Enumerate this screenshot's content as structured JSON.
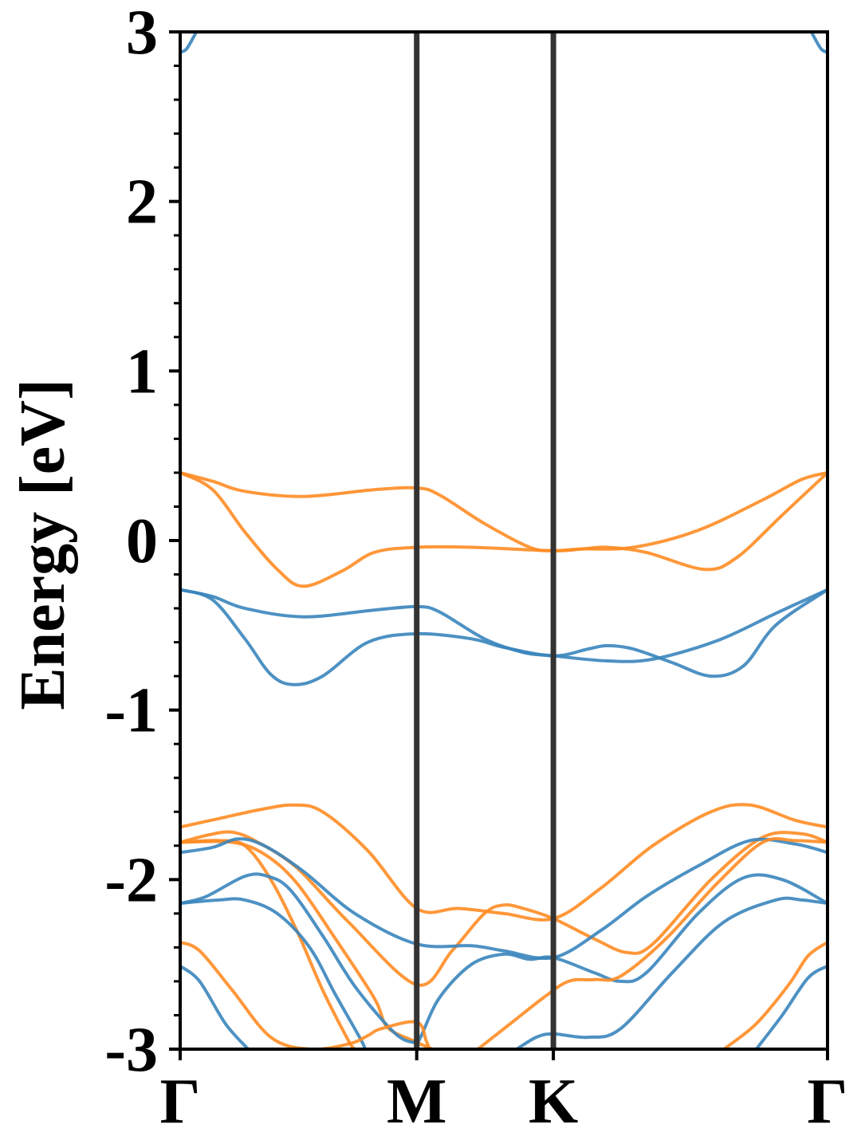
{
  "chart_data": {
    "type": "line",
    "title": "",
    "xlabel": "",
    "ylabel": "Energy [eV]",
    "ylim": [
      -3,
      3
    ],
    "yticks": [
      "-3",
      "-2",
      "-1",
      "0",
      "1",
      "2",
      "3"
    ],
    "y_minor_tick_step": 0.2,
    "grid": false,
    "legend": "none",
    "high_symmetry_points": [
      {
        "label": "Γ",
        "k": 0.0
      },
      {
        "label": "M",
        "k": 0.3654
      },
      {
        "label": "K",
        "k": 0.5765
      },
      {
        "label": "Γ",
        "k": 1.0
      }
    ],
    "colors": {
      "blue": "#3a85bd",
      "orange": "#ff8c24",
      "vline": "#333333",
      "axis": "#000000"
    },
    "series": [
      {
        "color": "#3a85bd",
        "points": [
          [
            0.0,
            2.88
          ],
          [
            0.01,
            2.9
          ],
          [
            0.025,
            3.0
          ]
        ]
      },
      {
        "color": "#3a85bd",
        "points": [
          [
            0.975,
            3.0
          ],
          [
            0.99,
            2.9
          ],
          [
            1.0,
            2.88
          ]
        ]
      },
      {
        "color": "#ff8c24",
        "points": [
          [
            0.0,
            0.4
          ],
          [
            0.05,
            0.35
          ],
          [
            0.1,
            0.29
          ],
          [
            0.19,
            0.26
          ],
          [
            0.3,
            0.3
          ],
          [
            0.3654,
            0.31
          ],
          [
            0.4,
            0.27
          ],
          [
            0.47,
            0.1
          ],
          [
            0.54,
            -0.04
          ],
          [
            0.5765,
            -0.06
          ],
          [
            0.62,
            -0.05
          ],
          [
            0.7,
            -0.04
          ],
          [
            0.8,
            0.06
          ],
          [
            0.9,
            0.24
          ],
          [
            0.96,
            0.36
          ],
          [
            1.0,
            0.4
          ]
        ]
      },
      {
        "color": "#ff8c24",
        "points": [
          [
            0.0,
            0.4
          ],
          [
            0.05,
            0.3
          ],
          [
            0.1,
            0.05
          ],
          [
            0.15,
            -0.17
          ],
          [
            0.19,
            -0.27
          ],
          [
            0.25,
            -0.18
          ],
          [
            0.3,
            -0.07
          ],
          [
            0.3654,
            -0.04
          ],
          [
            0.45,
            -0.04
          ],
          [
            0.5765,
            -0.06
          ],
          [
            0.62,
            -0.05
          ],
          [
            0.66,
            -0.04
          ],
          [
            0.72,
            -0.07
          ],
          [
            0.81,
            -0.17
          ],
          [
            0.86,
            -0.1
          ],
          [
            0.93,
            0.15
          ],
          [
            1.0,
            0.4
          ]
        ]
      },
      {
        "color": "#3a85bd",
        "points": [
          [
            0.0,
            -0.29
          ],
          [
            0.05,
            -0.33
          ],
          [
            0.1,
            -0.4
          ],
          [
            0.19,
            -0.45
          ],
          [
            0.3,
            -0.41
          ],
          [
            0.3654,
            -0.39
          ],
          [
            0.4,
            -0.42
          ],
          [
            0.47,
            -0.58
          ],
          [
            0.53,
            -0.66
          ],
          [
            0.5765,
            -0.68
          ],
          [
            0.66,
            -0.71
          ],
          [
            0.73,
            -0.7
          ],
          [
            0.83,
            -0.59
          ],
          [
            0.92,
            -0.43
          ],
          [
            1.0,
            -0.29
          ]
        ]
      },
      {
        "color": "#3a85bd",
        "points": [
          [
            0.0,
            -0.29
          ],
          [
            0.05,
            -0.35
          ],
          [
            0.1,
            -0.58
          ],
          [
            0.14,
            -0.79
          ],
          [
            0.175,
            -0.85
          ],
          [
            0.22,
            -0.8
          ],
          [
            0.29,
            -0.6
          ],
          [
            0.3654,
            -0.55
          ],
          [
            0.45,
            -0.58
          ],
          [
            0.5,
            -0.63
          ],
          [
            0.5765,
            -0.68
          ],
          [
            0.63,
            -0.64
          ],
          [
            0.66,
            -0.62
          ],
          [
            0.7,
            -0.64
          ],
          [
            0.76,
            -0.72
          ],
          [
            0.82,
            -0.8
          ],
          [
            0.87,
            -0.74
          ],
          [
            0.92,
            -0.5
          ],
          [
            1.0,
            -0.29
          ]
        ]
      },
      {
        "color": "#ff8c24",
        "points": [
          [
            0.0,
            -1.69
          ],
          [
            0.06,
            -1.64
          ],
          [
            0.12,
            -1.59
          ],
          [
            0.175,
            -1.56
          ],
          [
            0.22,
            -1.6
          ],
          [
            0.29,
            -1.83
          ],
          [
            0.3654,
            -2.17
          ],
          [
            0.43,
            -2.17
          ],
          [
            0.5,
            -2.2
          ],
          [
            0.5765,
            -2.23
          ],
          [
            0.65,
            -2.05
          ],
          [
            0.73,
            -1.8
          ],
          [
            0.82,
            -1.6
          ],
          [
            0.88,
            -1.56
          ],
          [
            0.95,
            -1.65
          ],
          [
            1.0,
            -1.69
          ]
        ]
      },
      {
        "color": "#ff8c24",
        "points": [
          [
            0.0,
            -1.78
          ],
          [
            0.04,
            -1.74
          ],
          [
            0.08,
            -1.72
          ],
          [
            0.12,
            -1.78
          ],
          [
            0.18,
            -1.93
          ],
          [
            0.26,
            -2.25
          ],
          [
            0.3654,
            -2.62
          ],
          [
            0.42,
            -2.42
          ],
          [
            0.47,
            -2.2
          ],
          [
            0.5,
            -2.15
          ],
          [
            0.53,
            -2.17
          ],
          [
            0.5765,
            -2.23
          ],
          [
            0.64,
            -2.35
          ],
          [
            0.69,
            -2.43
          ],
          [
            0.73,
            -2.38
          ],
          [
            0.82,
            -2.0
          ],
          [
            0.9,
            -1.75
          ],
          [
            0.96,
            -1.73
          ],
          [
            1.0,
            -1.78
          ]
        ]
      },
      {
        "color": "#ff8c24",
        "points": [
          [
            0.0,
            -1.78
          ],
          [
            0.08,
            -1.78
          ],
          [
            0.13,
            -1.85
          ],
          [
            0.18,
            -2.02
          ],
          [
            0.24,
            -2.35
          ],
          [
            0.3,
            -2.7
          ],
          [
            0.32,
            -2.87
          ],
          [
            0.36,
            -2.95
          ],
          [
            0.39,
            -3.0
          ]
        ]
      },
      {
        "color": "#ff8c24",
        "points": [
          [
            0.0,
            -1.78
          ],
          [
            0.06,
            -1.77
          ],
          [
            0.1,
            -1.8
          ],
          [
            0.14,
            -2.0
          ],
          [
            0.18,
            -2.3
          ],
          [
            0.22,
            -2.65
          ],
          [
            0.26,
            -2.95
          ],
          [
            0.27,
            -3.0
          ]
        ]
      },
      {
        "color": "#3a85bd",
        "points": [
          [
            0.0,
            -1.84
          ],
          [
            0.05,
            -1.81
          ],
          [
            0.09,
            -1.76
          ],
          [
            0.13,
            -1.8
          ],
          [
            0.19,
            -1.95
          ],
          [
            0.27,
            -2.2
          ],
          [
            0.3654,
            -2.38
          ],
          [
            0.45,
            -2.39
          ],
          [
            0.5,
            -2.42
          ],
          [
            0.5765,
            -2.46
          ],
          [
            0.65,
            -2.3
          ],
          [
            0.72,
            -2.1
          ],
          [
            0.8,
            -1.92
          ],
          [
            0.88,
            -1.77
          ],
          [
            0.95,
            -1.79
          ],
          [
            1.0,
            -1.84
          ]
        ]
      },
      {
        "color": "#3a85bd",
        "points": [
          [
            0.0,
            -2.14
          ],
          [
            0.04,
            -2.1
          ],
          [
            0.1,
            -1.98
          ],
          [
            0.135,
            -1.98
          ],
          [
            0.17,
            -2.06
          ],
          [
            0.22,
            -2.33
          ],
          [
            0.27,
            -2.63
          ],
          [
            0.33,
            -2.9
          ],
          [
            0.36,
            -2.96
          ],
          [
            0.37,
            -2.94
          ],
          [
            0.4,
            -2.7
          ],
          [
            0.45,
            -2.5
          ],
          [
            0.5,
            -2.44
          ],
          [
            0.54,
            -2.47
          ],
          [
            0.5765,
            -2.46
          ],
          [
            0.64,
            -2.55
          ],
          [
            0.68,
            -2.6
          ],
          [
            0.72,
            -2.55
          ],
          [
            0.8,
            -2.2
          ],
          [
            0.87,
            -1.99
          ],
          [
            0.93,
            -2.0
          ],
          [
            1.0,
            -2.14
          ]
        ]
      },
      {
        "color": "#3a85bd",
        "points": [
          [
            0.0,
            -2.14
          ],
          [
            0.06,
            -2.12
          ],
          [
            0.1,
            -2.12
          ],
          [
            0.15,
            -2.2
          ],
          [
            0.2,
            -2.4
          ],
          [
            0.24,
            -2.68
          ],
          [
            0.28,
            -2.95
          ],
          [
            0.285,
            -3.0
          ]
        ]
      },
      {
        "color": "#3a85bd",
        "points": [
          [
            0.0,
            -2.51
          ],
          [
            0.03,
            -2.6
          ],
          [
            0.07,
            -2.85
          ],
          [
            0.105,
            -3.0
          ]
        ]
      },
      {
        "color": "#ff8c24",
        "points": [
          [
            0.0,
            -2.37
          ],
          [
            0.03,
            -2.42
          ],
          [
            0.08,
            -2.65
          ],
          [
            0.14,
            -2.93
          ],
          [
            0.2,
            -3.0
          ],
          [
            0.26,
            -2.97
          ],
          [
            0.29,
            -2.92
          ],
          [
            0.31,
            -2.88
          ],
          [
            0.3654,
            -2.84
          ],
          [
            0.38,
            -2.95
          ],
          [
            0.385,
            -3.0
          ]
        ]
      },
      {
        "color": "#ff8c24",
        "points": [
          [
            0.46,
            -3.0
          ],
          [
            0.51,
            -2.85
          ],
          [
            0.56,
            -2.7
          ],
          [
            0.6,
            -2.6
          ],
          [
            0.64,
            -2.59
          ],
          [
            0.68,
            -2.57
          ],
          [
            0.75,
            -2.35
          ],
          [
            0.83,
            -2.02
          ],
          [
            0.9,
            -1.78
          ],
          [
            0.95,
            -1.77
          ],
          [
            1.0,
            -1.78
          ]
        ]
      },
      {
        "color": "#3a85bd",
        "points": [
          [
            0.52,
            -3.0
          ],
          [
            0.55,
            -2.93
          ],
          [
            0.5765,
            -2.91
          ],
          [
            0.63,
            -2.93
          ],
          [
            0.68,
            -2.88
          ],
          [
            0.76,
            -2.55
          ],
          [
            0.84,
            -2.25
          ],
          [
            0.92,
            -2.12
          ],
          [
            0.96,
            -2.12
          ],
          [
            1.0,
            -2.14
          ]
        ]
      },
      {
        "color": "#ff8c24",
        "points": [
          [
            0.84,
            -3.0
          ],
          [
            0.89,
            -2.85
          ],
          [
            0.94,
            -2.62
          ],
          [
            0.97,
            -2.45
          ],
          [
            1.0,
            -2.37
          ]
        ]
      },
      {
        "color": "#3a85bd",
        "points": [
          [
            0.89,
            -3.0
          ],
          [
            0.93,
            -2.8
          ],
          [
            0.97,
            -2.58
          ],
          [
            1.0,
            -2.51
          ]
        ]
      }
    ]
  }
}
